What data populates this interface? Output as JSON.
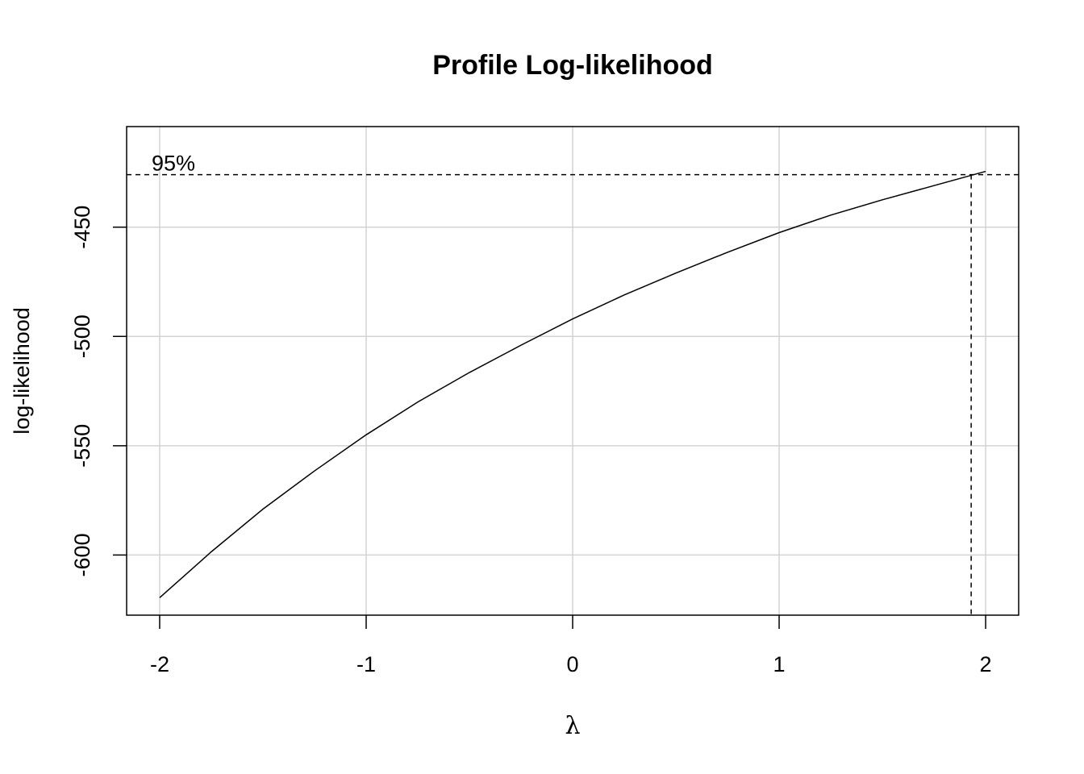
{
  "chart_data": {
    "type": "line",
    "title": "Profile Log-likelihood",
    "xlabel": "λ",
    "ylabel": "log-likelihood",
    "xlim": [
      -2.16,
      2.16
    ],
    "ylim": [
      -627.5,
      -404
    ],
    "x_ticks": [
      -2,
      -1,
      0,
      1,
      2
    ],
    "y_ticks": [
      -450,
      -500,
      -550,
      -600
    ],
    "grid": true,
    "series": [
      {
        "x": [
          -2,
          -1.75,
          -1.5,
          -1.25,
          -1,
          -0.75,
          -0.5,
          -0.25,
          0,
          0.25,
          0.5,
          0.75,
          1,
          1.25,
          1.5,
          1.75,
          2
        ],
        "y": [
          -619.5,
          -598.5,
          -579,
          -561.5,
          -545,
          -530,
          -516.5,
          -504,
          -492,
          -481,
          -471,
          -461.5,
          -452.5,
          -444.5,
          -437.5,
          -431,
          -424.5
        ]
      }
    ],
    "ci_threshold": -426,
    "ci_upper_lambda": 1.93,
    "ci_label": "95%"
  }
}
